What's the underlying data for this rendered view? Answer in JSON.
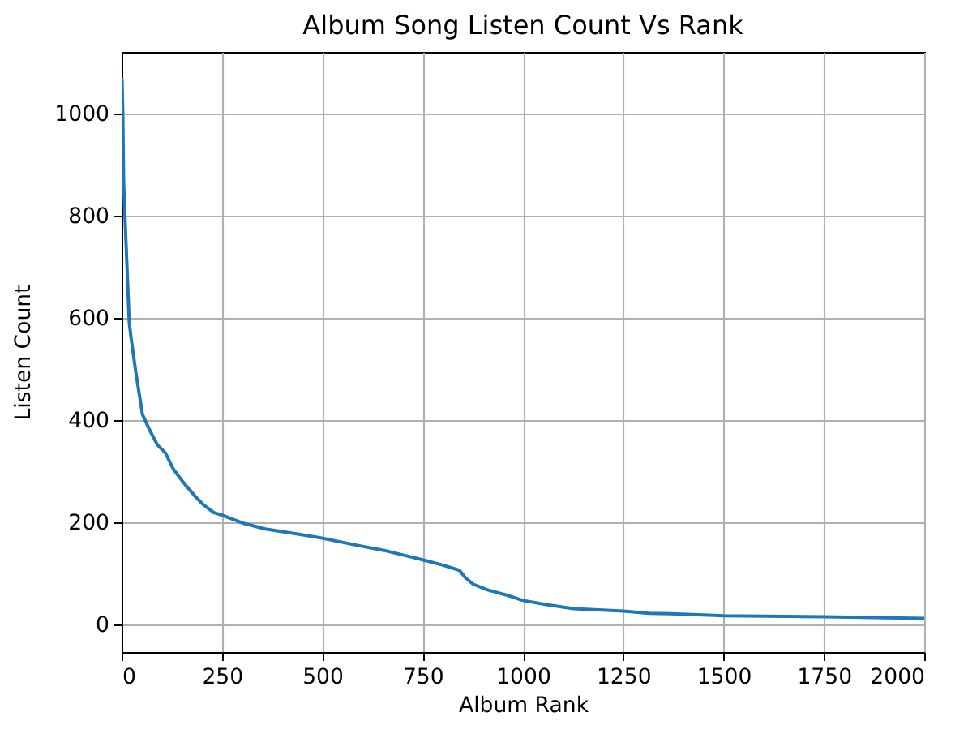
{
  "chart_data": {
    "type": "line",
    "title": "Album Song Listen Count Vs Rank",
    "xlabel": "Album Rank",
    "ylabel": "Listen Count",
    "x": [
      1,
      3,
      5,
      8,
      13,
      19,
      24,
      35,
      52,
      71,
      89,
      109,
      129,
      154,
      183,
      203,
      230,
      250,
      304,
      358,
      439,
      499,
      587,
      654,
      748,
      801,
      842,
      856,
      876,
      910,
      957,
      1000,
      1058,
      1126,
      1251,
      1314,
      1368,
      1476,
      1501,
      1752,
      2000
    ],
    "series": [
      {
        "color": "#1f77b4",
        "values": [
          1068,
          1000,
          868,
          805,
          708,
          591,
          559,
          496,
          411,
          379,
          352,
          336,
          304,
          278,
          251,
          235,
          219,
          214,
          198,
          187,
          177,
          169,
          155,
          145,
          127,
          116,
          106,
          92,
          79,
          68,
          58,
          47,
          39,
          31,
          26,
          22,
          21,
          18,
          17,
          15,
          12
        ]
      }
    ],
    "xlim": [
      0,
      2000
    ],
    "ylim": [
      -54,
      1121
    ],
    "xticks": [
      0,
      250,
      500,
      750,
      1000,
      1250,
      1500,
      1750,
      2000
    ],
    "yticks": [
      0,
      200,
      400,
      600,
      800,
      1000
    ],
    "grid": true
  }
}
